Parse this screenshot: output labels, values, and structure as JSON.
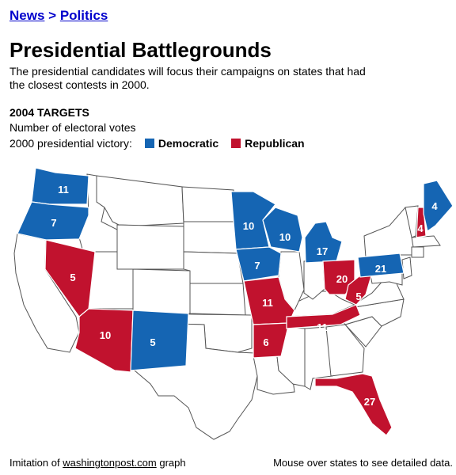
{
  "breadcrumb": {
    "news": "News",
    "separator": ">",
    "politics": "Politics"
  },
  "title": "Presidential Battlegrounds",
  "intro": "The presidential candidates will focus their campaigns on states that had the closest contests in 2000.",
  "targets_heading": "2004 TARGETS",
  "votes_label": "Number of electoral votes",
  "legend": {
    "label": "2000 presidential victory:",
    "democratic": {
      "label": "Democratic",
      "color": "#1565b3"
    },
    "republican": {
      "label": "Republican",
      "color": "#c1122e"
    }
  },
  "neutral_color": "#ffffff",
  "battleground_states": [
    {
      "state": "Washington",
      "party": "democratic",
      "votes": "11"
    },
    {
      "state": "Oregon",
      "party": "democratic",
      "votes": "7"
    },
    {
      "state": "Nevada",
      "party": "republican",
      "votes": "5"
    },
    {
      "state": "Arizona",
      "party": "republican",
      "votes": "10"
    },
    {
      "state": "New Mexico",
      "party": "democratic",
      "votes": "5"
    },
    {
      "state": "Minnesota",
      "party": "democratic",
      "votes": "10"
    },
    {
      "state": "Iowa",
      "party": "democratic",
      "votes": "7"
    },
    {
      "state": "Wisconsin",
      "party": "democratic",
      "votes": "10"
    },
    {
      "state": "Michigan",
      "party": "democratic",
      "votes": "17"
    },
    {
      "state": "Missouri",
      "party": "republican",
      "votes": "11"
    },
    {
      "state": "Arkansas",
      "party": "republican",
      "votes": "6"
    },
    {
      "state": "Tennessee",
      "party": "republican",
      "votes": "11"
    },
    {
      "state": "Ohio",
      "party": "republican",
      "votes": "20"
    },
    {
      "state": "West Virginia",
      "party": "republican",
      "votes": "5"
    },
    {
      "state": "Pennsylvania",
      "party": "democratic",
      "votes": "21"
    },
    {
      "state": "New Hampshire",
      "party": "republican",
      "votes": "4"
    },
    {
      "state": "Maine",
      "party": "democratic",
      "votes": "4"
    },
    {
      "state": "Florida",
      "party": "republican",
      "votes": "27"
    }
  ],
  "footer": {
    "prefix": "Imitation of",
    "link": "washingtonpost.com",
    "suffix": "graph",
    "hint": "Mouse over states to see detailed data."
  }
}
